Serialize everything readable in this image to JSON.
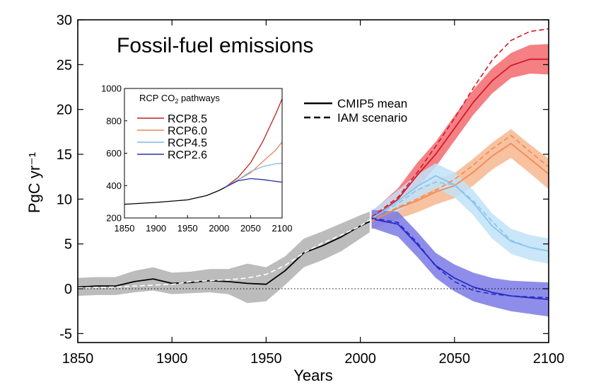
{
  "chart_data": {
    "type": "line",
    "title": "Fossil-fuel emissions",
    "xlabel": "Years",
    "ylabel": "PgC yr⁻¹",
    "xlim": [
      1850,
      2100
    ],
    "ylim": [
      -6,
      30
    ],
    "x_ticks": [
      "1850",
      "1900",
      "1950",
      "2000",
      "2050",
      "2100"
    ],
    "y_ticks": [
      "-5",
      "0",
      "5",
      "10",
      "15",
      "20",
      "25",
      "30"
    ],
    "zero_line": "dotted",
    "grid": false,
    "legend": {
      "position": "center-top",
      "entries": [
        {
          "label": "CMIP5 mean",
          "style": "solid"
        },
        {
          "label": "IAM scenario",
          "style": "dashed"
        }
      ]
    },
    "series": [
      {
        "name": "Historical",
        "color": "#000000",
        "band_color": "#b0b0b0",
        "x": [
          1850,
          1860,
          1870,
          1880,
          1890,
          1900,
          1910,
          1920,
          1930,
          1940,
          1950,
          1960,
          1970,
          1980,
          1990,
          2000,
          2005
        ],
        "cmip5_mean": [
          0.2,
          0.3,
          0.3,
          0.8,
          1.1,
          0.6,
          0.7,
          0.9,
          0.8,
          0.6,
          0.5,
          2.0,
          4.0,
          4.8,
          5.8,
          7.0,
          7.5
        ],
        "band_low": [
          -0.8,
          -0.7,
          -0.7,
          -0.4,
          -0.2,
          -0.6,
          -0.5,
          -0.4,
          -0.6,
          -1.6,
          -1.4,
          0.4,
          2.4,
          3.2,
          4.2,
          5.6,
          6.3
        ],
        "band_high": [
          1.2,
          1.3,
          1.3,
          2.0,
          2.4,
          1.8,
          1.9,
          2.2,
          2.2,
          2.8,
          2.4,
          3.6,
          5.6,
          6.4,
          7.3,
          8.2,
          8.6
        ],
        "iam_scenario": [
          0.1,
          0.15,
          0.2,
          0.3,
          0.4,
          0.5,
          0.8,
          0.9,
          1.0,
          1.2,
          1.6,
          2.6,
          4.0,
          5.1,
          6.0,
          7.0,
          7.7
        ]
      },
      {
        "name": "RCP8.5",
        "color": "#d7182a",
        "band_color": "#f26a6e",
        "x": [
          2006,
          2020,
          2030,
          2040,
          2050,
          2060,
          2070,
          2080,
          2090,
          2100
        ],
        "cmip5_mean": [
          7.8,
          10.0,
          12.6,
          15.0,
          17.9,
          20.8,
          23.2,
          24.9,
          25.6,
          25.6
        ],
        "band_low": [
          7.0,
          8.8,
          11.2,
          13.6,
          16.5,
          19.4,
          21.8,
          23.5,
          24.0,
          23.9
        ],
        "band_high": [
          8.6,
          11.2,
          14.0,
          16.4,
          19.3,
          22.2,
          24.6,
          26.3,
          27.2,
          27.3
        ],
        "iam_scenario": [
          8.0,
          10.2,
          12.9,
          15.9,
          19.0,
          22.4,
          25.5,
          27.7,
          28.7,
          29.0
        ]
      },
      {
        "name": "RCP6.0",
        "color": "#f08a52",
        "band_color": "#f7b68f",
        "x": [
          2006,
          2020,
          2030,
          2040,
          2050,
          2060,
          2070,
          2080,
          2090,
          2100
        ],
        "cmip5_mean": [
          7.5,
          9.0,
          9.8,
          10.8,
          11.5,
          13.0,
          14.8,
          16.2,
          14.5,
          12.8
        ],
        "band_low": [
          6.6,
          7.8,
          8.5,
          9.4,
          10.1,
          11.5,
          13.3,
          14.6,
          12.9,
          11.1
        ],
        "band_high": [
          8.4,
          10.2,
          11.1,
          12.2,
          12.9,
          14.5,
          16.3,
          17.8,
          16.1,
          14.5
        ],
        "iam_scenario": [
          7.6,
          9.1,
          10.0,
          11.0,
          12.2,
          13.8,
          15.6,
          17.1,
          15.3,
          13.6
        ]
      },
      {
        "name": "RCP4.5",
        "color": "#86c5f0",
        "band_color": "#c1e2f8",
        "x": [
          2006,
          2020,
          2030,
          2040,
          2050,
          2060,
          2070,
          2080,
          2090,
          2100
        ],
        "cmip5_mean": [
          7.8,
          9.8,
          11.4,
          12.6,
          11.6,
          9.6,
          7.0,
          5.3,
          4.6,
          4.2
        ],
        "band_low": [
          6.9,
          8.6,
          10.1,
          11.2,
          10.2,
          8.2,
          5.6,
          3.9,
          3.2,
          2.8
        ],
        "band_high": [
          8.7,
          11.0,
          12.7,
          14.0,
          13.0,
          11.0,
          8.4,
          6.7,
          6.0,
          5.6
        ],
        "iam_scenario": [
          7.9,
          9.5,
          11.0,
          11.9,
          11.6,
          9.8,
          7.5,
          5.4,
          4.6,
          4.2
        ]
      },
      {
        "name": "RCP2.6",
        "color": "#2b2bc8",
        "band_color": "#7a7ae6",
        "x": [
          2006,
          2020,
          2030,
          2040,
          2050,
          2060,
          2070,
          2080,
          2090,
          2100
        ],
        "cmip5_mean": [
          7.8,
          7.2,
          5.0,
          2.6,
          1.2,
          0.2,
          -0.4,
          -0.8,
          -1.0,
          -1.2
        ],
        "band_low": [
          6.8,
          5.8,
          3.6,
          1.2,
          -0.3,
          -1.4,
          -2.0,
          -2.5,
          -2.8,
          -3.1
        ],
        "band_high": [
          8.8,
          8.6,
          6.4,
          4.0,
          2.7,
          1.8,
          1.2,
          0.9,
          0.8,
          0.7
        ],
        "iam_scenario": [
          7.9,
          7.4,
          5.2,
          2.5,
          0.8,
          -0.2,
          -0.6,
          -0.8,
          -0.9,
          -1.0
        ]
      }
    ],
    "inset": {
      "type": "line",
      "title_parts": [
        "RCP CO",
        "2",
        " pathways"
      ],
      "xlim": [
        1850,
        2100
      ],
      "ylim": [
        200,
        1000
      ],
      "x_ticks": [
        "1850",
        "1900",
        "1950",
        "2000",
        "2050",
        "2100"
      ],
      "y_ticks": [
        "200",
        "400",
        "600",
        "800",
        "1000"
      ],
      "legend": {
        "position": "upper-left",
        "entries": [
          "RCP8.5",
          "RCP6.0",
          "RCP4.5",
          "RCP2.6"
        ]
      },
      "series": [
        {
          "name": "Historical",
          "color": "#000000",
          "x": [
            1850,
            1900,
            1950,
            1980,
            2000,
            2010
          ],
          "values": [
            285,
            296,
            312,
            338,
            370,
            390
          ]
        },
        {
          "name": "RCP8.5",
          "color": "#c02020",
          "x": [
            2010,
            2030,
            2050,
            2070,
            2090,
            2100
          ],
          "values": [
            390,
            450,
            541,
            677,
            844,
            936
          ]
        },
        {
          "name": "RCP6.0",
          "color": "#e08a5a",
          "x": [
            2010,
            2030,
            2050,
            2070,
            2090,
            2100
          ],
          "values": [
            390,
            435,
            479,
            550,
            620,
            670
          ]
        },
        {
          "name": "RCP4.5",
          "color": "#80b8e8",
          "x": [
            2010,
            2030,
            2050,
            2070,
            2090,
            2100
          ],
          "values": [
            390,
            435,
            487,
            518,
            535,
            538
          ]
        },
        {
          "name": "RCP2.6",
          "color": "#3030a8",
          "x": [
            2010,
            2030,
            2050,
            2070,
            2090,
            2100
          ],
          "values": [
            390,
            430,
            443,
            437,
            426,
            421
          ]
        }
      ]
    }
  }
}
